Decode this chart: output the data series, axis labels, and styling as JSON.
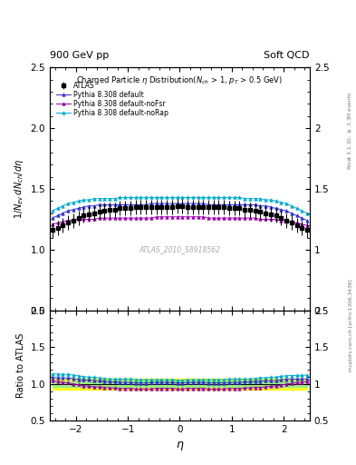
{
  "title_left": "900 GeV pp",
  "title_right": "Soft QCD",
  "plot_title": "Charged Particle $\\eta$ Distribution($N_{ch}$ > 1, $p_T$ > 0.5 GeV)",
  "ylabel_main": "$1/N_{ev}\\,dN_{ch}/d\\eta$",
  "ylabel_ratio": "Ratio to ATLAS",
  "xlabel": "$\\eta$",
  "right_label_top": "Rivet 3.1.10, $\\geq$ 3.3M events",
  "right_label_bottom": "mcplots.cern.ch [arXiv:1306.3436]",
  "watermark": "ATLAS_2010_S8918562",
  "xlim": [
    -2.5,
    2.5
  ],
  "ylim_main": [
    0.5,
    2.5
  ],
  "ylim_ratio": [
    0.5,
    2.0
  ],
  "yticks_main": [
    0.5,
    1.0,
    1.5,
    2.0,
    2.5
  ],
  "yticks_ratio": [
    0.5,
    1.0,
    1.5,
    2.0
  ],
  "xticks": [
    -2,
    -1,
    0,
    1,
    2
  ],
  "legend_entries": [
    "ATLAS",
    "Pythia 8.308 default",
    "Pythia 8.308 default-noFsr",
    "Pythia 8.308 default-noRap"
  ],
  "atlas_color": "black",
  "pythia_default_color": "#3030cc",
  "pythia_nofsr_color": "#9900aa",
  "pythia_norap_color": "#00aacc",
  "atlas_marker": "s",
  "pythia_marker": "^",
  "data_eta": [
    -2.45,
    -2.35,
    -2.25,
    -2.15,
    -2.05,
    -1.95,
    -1.85,
    -1.75,
    -1.65,
    -1.55,
    -1.45,
    -1.35,
    -1.25,
    -1.15,
    -1.05,
    -0.95,
    -0.85,
    -0.75,
    -0.65,
    -0.55,
    -0.45,
    -0.35,
    -0.25,
    -0.15,
    -0.05,
    0.05,
    0.15,
    0.25,
    0.35,
    0.45,
    0.55,
    0.65,
    0.75,
    0.85,
    0.95,
    1.05,
    1.15,
    1.25,
    1.35,
    1.45,
    1.55,
    1.65,
    1.75,
    1.85,
    1.95,
    2.05,
    2.15,
    2.25,
    2.35,
    2.45
  ],
  "atlas_vals": [
    1.16,
    1.18,
    1.2,
    1.22,
    1.24,
    1.26,
    1.28,
    1.29,
    1.3,
    1.31,
    1.32,
    1.33,
    1.33,
    1.34,
    1.34,
    1.34,
    1.35,
    1.35,
    1.35,
    1.35,
    1.35,
    1.35,
    1.35,
    1.35,
    1.36,
    1.36,
    1.35,
    1.35,
    1.35,
    1.35,
    1.35,
    1.35,
    1.35,
    1.35,
    1.34,
    1.34,
    1.34,
    1.33,
    1.33,
    1.32,
    1.31,
    1.3,
    1.29,
    1.28,
    1.26,
    1.24,
    1.22,
    1.2,
    1.18,
    1.16
  ],
  "atlas_err": [
    0.06,
    0.06,
    0.06,
    0.06,
    0.06,
    0.06,
    0.06,
    0.06,
    0.06,
    0.06,
    0.06,
    0.06,
    0.06,
    0.06,
    0.06,
    0.06,
    0.06,
    0.06,
    0.06,
    0.06,
    0.06,
    0.06,
    0.06,
    0.06,
    0.06,
    0.06,
    0.06,
    0.06,
    0.06,
    0.06,
    0.06,
    0.06,
    0.06,
    0.06,
    0.06,
    0.06,
    0.06,
    0.06,
    0.06,
    0.06,
    0.06,
    0.06,
    0.06,
    0.06,
    0.06,
    0.06,
    0.06,
    0.06,
    0.06,
    0.06
  ],
  "pythia_default_vals": [
    1.26,
    1.28,
    1.3,
    1.32,
    1.33,
    1.34,
    1.35,
    1.36,
    1.36,
    1.37,
    1.37,
    1.37,
    1.37,
    1.37,
    1.37,
    1.37,
    1.37,
    1.37,
    1.37,
    1.38,
    1.38,
    1.38,
    1.38,
    1.38,
    1.38,
    1.38,
    1.38,
    1.38,
    1.38,
    1.38,
    1.37,
    1.37,
    1.37,
    1.37,
    1.37,
    1.37,
    1.37,
    1.37,
    1.37,
    1.37,
    1.36,
    1.36,
    1.35,
    1.34,
    1.33,
    1.32,
    1.3,
    1.28,
    1.26,
    1.24
  ],
  "pythia_nofsr_vals": [
    1.21,
    1.22,
    1.23,
    1.24,
    1.24,
    1.25,
    1.25,
    1.25,
    1.25,
    1.26,
    1.26,
    1.26,
    1.26,
    1.26,
    1.26,
    1.26,
    1.26,
    1.26,
    1.26,
    1.26,
    1.27,
    1.27,
    1.27,
    1.27,
    1.27,
    1.27,
    1.27,
    1.27,
    1.27,
    1.27,
    1.26,
    1.26,
    1.26,
    1.26,
    1.26,
    1.26,
    1.26,
    1.26,
    1.26,
    1.26,
    1.25,
    1.25,
    1.25,
    1.25,
    1.24,
    1.24,
    1.23,
    1.22,
    1.21,
    1.2
  ],
  "pythia_norap_vals": [
    1.32,
    1.34,
    1.36,
    1.38,
    1.39,
    1.4,
    1.41,
    1.41,
    1.42,
    1.42,
    1.42,
    1.42,
    1.42,
    1.43,
    1.43,
    1.43,
    1.43,
    1.43,
    1.43,
    1.43,
    1.43,
    1.43,
    1.43,
    1.43,
    1.43,
    1.43,
    1.43,
    1.43,
    1.43,
    1.43,
    1.43,
    1.43,
    1.43,
    1.43,
    1.43,
    1.43,
    1.43,
    1.42,
    1.42,
    1.42,
    1.42,
    1.41,
    1.41,
    1.4,
    1.39,
    1.38,
    1.36,
    1.34,
    1.32,
    1.3
  ],
  "atlas_ratio_err_yellow": 0.07,
  "atlas_ratio_err_green": 0.035
}
